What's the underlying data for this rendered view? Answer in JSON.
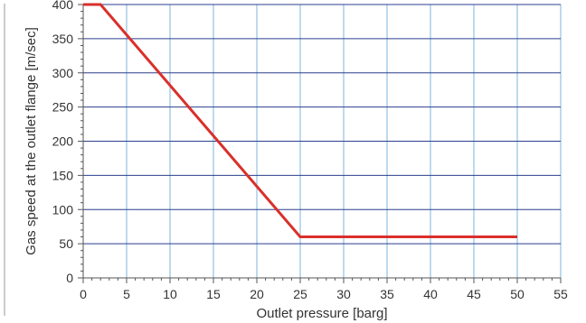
{
  "chart_data": {
    "type": "line",
    "xlabel": "Outlet pressure [barg]",
    "ylabel": "Gas speed at the outlet flange [m/sec]",
    "xlim": [
      0,
      55
    ],
    "ylim": [
      0,
      400
    ],
    "x_ticks": [
      0,
      5,
      10,
      15,
      20,
      25,
      30,
      35,
      40,
      45,
      50,
      55
    ],
    "y_ticks": [
      0,
      50,
      100,
      150,
      200,
      250,
      300,
      350,
      400
    ],
    "grid": true,
    "series": [
      {
        "x": [
          0,
          2,
          25,
          50
        ],
        "y": [
          400,
          400,
          60,
          60
        ],
        "color": "#d9302b"
      }
    ],
    "colors": {
      "vertical_grid": "#7eb6dd",
      "horizontal_grid": "#2b3f8c",
      "axis": "#555555",
      "text": "#333333"
    }
  }
}
